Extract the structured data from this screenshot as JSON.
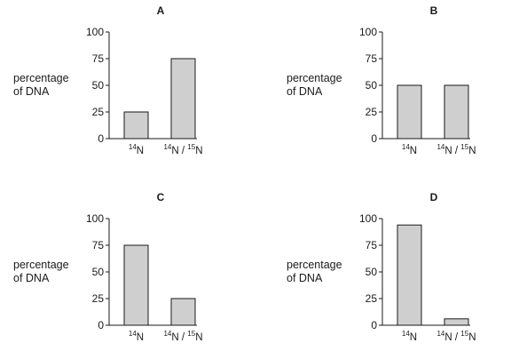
{
  "chart_data": [
    {
      "type": "bar",
      "title": "A",
      "ylabel": "percentage\nof DNA",
      "ylim": [
        0,
        100
      ],
      "yticks": [
        0,
        25,
        50,
        75,
        100
      ],
      "categories": [
        {
          "mass": "14",
          "element": "N"
        },
        {
          "mass": "14",
          "element": "N",
          "sep": " / ",
          "mass2": "15",
          "element2": "N"
        }
      ],
      "values": [
        25,
        75
      ]
    },
    {
      "type": "bar",
      "title": "B",
      "ylabel": "percentage\nof DNA",
      "ylim": [
        0,
        100
      ],
      "yticks": [
        0,
        25,
        50,
        75,
        100
      ],
      "categories": [
        {
          "mass": "14",
          "element": "N"
        },
        {
          "mass": "14",
          "element": "N",
          "sep": " / ",
          "mass2": "15",
          "element2": "N"
        }
      ],
      "values": [
        50,
        50
      ]
    },
    {
      "type": "bar",
      "title": "C",
      "ylabel": "percentage\nof DNA",
      "ylim": [
        0,
        100
      ],
      "yticks": [
        0,
        25,
        50,
        75,
        100
      ],
      "categories": [
        {
          "mass": "14",
          "element": "N"
        },
        {
          "mass": "14",
          "element": "N",
          "sep": " / ",
          "mass2": "15",
          "element2": "N"
        }
      ],
      "values": [
        75,
        25
      ]
    },
    {
      "type": "bar",
      "title": "D",
      "ylabel": "percentage\nof DNA",
      "ylim": [
        0,
        100
      ],
      "yticks": [
        0,
        25,
        50,
        75,
        100
      ],
      "categories": [
        {
          "mass": "14",
          "element": "N"
        },
        {
          "mass": "14",
          "element": "N",
          "sep": " / ",
          "mass2": "15",
          "element2": "N"
        }
      ],
      "values": [
        94,
        6
      ]
    }
  ],
  "colors": {
    "bar_fill": "#cfcfcf",
    "ink": "#1a1a1a"
  }
}
